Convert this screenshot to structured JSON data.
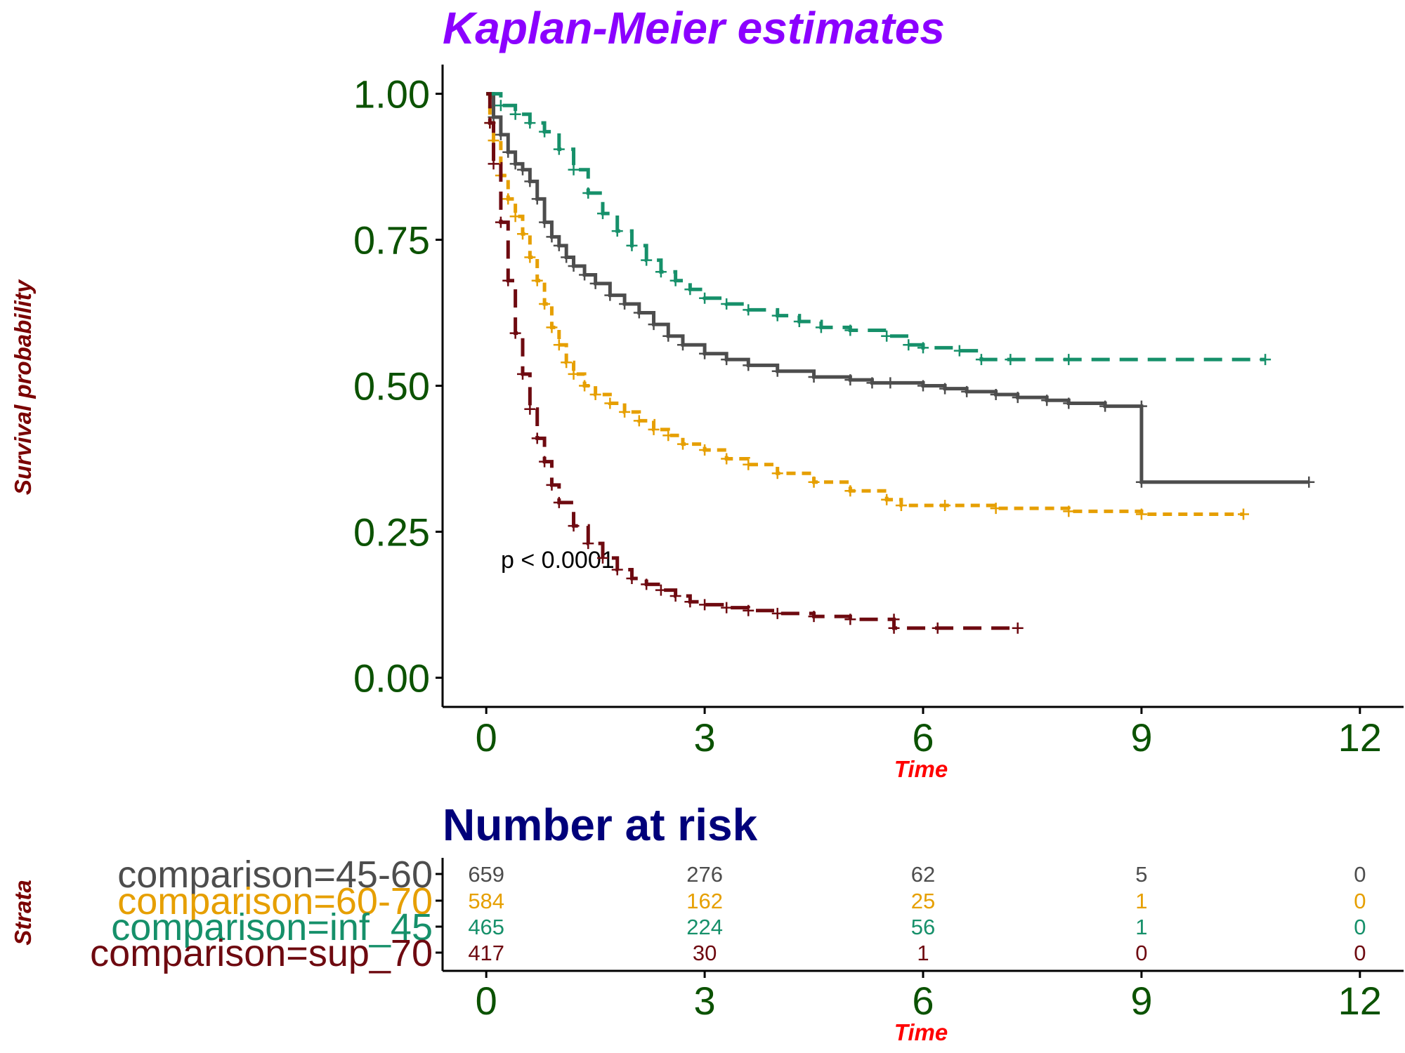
{
  "chart_data": [
    {
      "type": "line",
      "subtype": "kaplan-meier",
      "title": "Kaplan-Meier estimates",
      "xlabel": "Time",
      "ylabel": "Survival probability",
      "xlim": [
        -0.6,
        12.6
      ],
      "ylim": [
        -0.05,
        1.05
      ],
      "x_ticks": [
        0,
        3,
        6,
        9,
        12
      ],
      "y_ticks": [
        0.0,
        0.25,
        0.5,
        0.75,
        1.0
      ],
      "y_tick_labels": [
        "0.00",
        "0.25",
        "0.50",
        "0.75",
        "1.00"
      ],
      "grid": false,
      "legend": "none",
      "annotation": "p < 0.0001",
      "colors": {
        "title": "#8B00FF",
        "axis_label": "#FF0000",
        "ylabel": "#7A0000",
        "tick_label": "#0B5200"
      },
      "series": [
        {
          "name": "comparison=45-60",
          "color": "#4D4D4D",
          "linestyle": "solid",
          "points": [
            [
              0,
              1.0
            ],
            [
              0.1,
              0.96
            ],
            [
              0.2,
              0.93
            ],
            [
              0.3,
              0.9
            ],
            [
              0.4,
              0.88
            ],
            [
              0.5,
              0.87
            ],
            [
              0.6,
              0.85
            ],
            [
              0.7,
              0.82
            ],
            [
              0.8,
              0.78
            ],
            [
              0.9,
              0.755
            ],
            [
              1.0,
              0.74
            ],
            [
              1.1,
              0.72
            ],
            [
              1.2,
              0.705
            ],
            [
              1.35,
              0.69
            ],
            [
              1.5,
              0.675
            ],
            [
              1.7,
              0.655
            ],
            [
              1.9,
              0.64
            ],
            [
              2.1,
              0.625
            ],
            [
              2.3,
              0.605
            ],
            [
              2.5,
              0.585
            ],
            [
              2.7,
              0.57
            ],
            [
              3.0,
              0.555
            ],
            [
              3.3,
              0.545
            ],
            [
              3.6,
              0.535
            ],
            [
              4.0,
              0.525
            ],
            [
              4.5,
              0.515
            ],
            [
              5.0,
              0.51
            ],
            [
              5.3,
              0.505
            ],
            [
              5.55,
              0.505
            ],
            [
              6.0,
              0.5
            ],
            [
              6.3,
              0.495
            ],
            [
              6.6,
              0.49
            ],
            [
              7.0,
              0.485
            ],
            [
              7.3,
              0.48
            ],
            [
              7.7,
              0.475
            ],
            [
              8.0,
              0.47
            ],
            [
              8.5,
              0.465
            ],
            [
              9.0,
              0.465
            ],
            [
              9.0,
              0.335
            ],
            [
              11.3,
              0.335
            ]
          ]
        },
        {
          "name": "comparison=60-70",
          "color": "#E69F00",
          "linestyle": "dotted",
          "points": [
            [
              0,
              1.0
            ],
            [
              0.05,
              0.95
            ],
            [
              0.1,
              0.92
            ],
            [
              0.2,
              0.86
            ],
            [
              0.3,
              0.82
            ],
            [
              0.4,
              0.79
            ],
            [
              0.5,
              0.76
            ],
            [
              0.6,
              0.72
            ],
            [
              0.7,
              0.68
            ],
            [
              0.8,
              0.64
            ],
            [
              0.9,
              0.6
            ],
            [
              1.0,
              0.57
            ],
            [
              1.1,
              0.54
            ],
            [
              1.2,
              0.52
            ],
            [
              1.35,
              0.5
            ],
            [
              1.5,
              0.485
            ],
            [
              1.7,
              0.47
            ],
            [
              1.9,
              0.455
            ],
            [
              2.1,
              0.44
            ],
            [
              2.3,
              0.425
            ],
            [
              2.5,
              0.415
            ],
            [
              2.7,
              0.4
            ],
            [
              3.0,
              0.39
            ],
            [
              3.3,
              0.375
            ],
            [
              3.6,
              0.365
            ],
            [
              4.0,
              0.35
            ],
            [
              4.5,
              0.335
            ],
            [
              5.0,
              0.32
            ],
            [
              5.5,
              0.305
            ],
            [
              5.7,
              0.295
            ],
            [
              6.3,
              0.295
            ],
            [
              7.0,
              0.29
            ],
            [
              8.0,
              0.285
            ],
            [
              9.0,
              0.28
            ],
            [
              10.4,
              0.28
            ]
          ]
        },
        {
          "name": "comparison=inf_45",
          "color": "#16906A",
          "linestyle": "dashed",
          "points": [
            [
              0,
              1.0
            ],
            [
              0.2,
              0.98
            ],
            [
              0.4,
              0.965
            ],
            [
              0.6,
              0.95
            ],
            [
              0.8,
              0.935
            ],
            [
              1.0,
              0.905
            ],
            [
              1.2,
              0.87
            ],
            [
              1.4,
              0.83
            ],
            [
              1.6,
              0.795
            ],
            [
              1.8,
              0.765
            ],
            [
              2.0,
              0.74
            ],
            [
              2.2,
              0.715
            ],
            [
              2.4,
              0.695
            ],
            [
              2.6,
              0.68
            ],
            [
              2.8,
              0.665
            ],
            [
              3.0,
              0.65
            ],
            [
              3.3,
              0.64
            ],
            [
              3.6,
              0.63
            ],
            [
              4.0,
              0.62
            ],
            [
              4.3,
              0.61
            ],
            [
              4.6,
              0.6
            ],
            [
              5.0,
              0.595
            ],
            [
              5.5,
              0.585
            ],
            [
              5.8,
              0.57
            ],
            [
              6.0,
              0.565
            ],
            [
              6.5,
              0.56
            ],
            [
              6.8,
              0.545
            ],
            [
              7.2,
              0.545
            ],
            [
              8.0,
              0.545
            ],
            [
              10.7,
              0.545
            ]
          ]
        },
        {
          "name": "comparison=sup_70",
          "color": "#6E0A10",
          "linestyle": "dashed",
          "points": [
            [
              0,
              1.0
            ],
            [
              0.05,
              0.95
            ],
            [
              0.1,
              0.88
            ],
            [
              0.2,
              0.78
            ],
            [
              0.3,
              0.68
            ],
            [
              0.4,
              0.59
            ],
            [
              0.5,
              0.52
            ],
            [
              0.6,
              0.46
            ],
            [
              0.7,
              0.41
            ],
            [
              0.8,
              0.37
            ],
            [
              0.9,
              0.33
            ],
            [
              1.0,
              0.3
            ],
            [
              1.2,
              0.26
            ],
            [
              1.4,
              0.23
            ],
            [
              1.6,
              0.205
            ],
            [
              1.8,
              0.185
            ],
            [
              2.0,
              0.17
            ],
            [
              2.2,
              0.16
            ],
            [
              2.4,
              0.15
            ],
            [
              2.6,
              0.14
            ],
            [
              2.8,
              0.13
            ],
            [
              3.0,
              0.125
            ],
            [
              3.3,
              0.12
            ],
            [
              3.6,
              0.115
            ],
            [
              4.0,
              0.11
            ],
            [
              4.5,
              0.105
            ],
            [
              5.0,
              0.1
            ],
            [
              5.6,
              0.1
            ],
            [
              5.6,
              0.085
            ],
            [
              6.2,
              0.085
            ],
            [
              7.3,
              0.085
            ]
          ]
        }
      ]
    },
    {
      "type": "table",
      "title": "Number at risk",
      "xlabel": "Time",
      "ylabel": "Strata",
      "x_ticks": [
        0,
        3,
        6,
        9,
        12
      ],
      "strata": [
        {
          "name": "comparison=45-60",
          "color": "#4D4D4D",
          "values": [
            "659",
            "276",
            "62",
            "5",
            "0"
          ]
        },
        {
          "name": "comparison=60-70",
          "color": "#E69F00",
          "values": [
            "584",
            "162",
            "25",
            "1",
            "0"
          ]
        },
        {
          "name": "comparison=inf_45",
          "color": "#16906A",
          "values": [
            "465",
            "224",
            "56",
            "1",
            "0"
          ]
        },
        {
          "name": "comparison=sup_70",
          "color": "#6E0A10",
          "values": [
            "417",
            "30",
            "1",
            "0",
            "0"
          ]
        }
      ],
      "colors": {
        "title": "#00007A",
        "axis_label": "#FF0000",
        "ylabel": "#7A0000",
        "tick_label": "#0B5200"
      }
    }
  ]
}
